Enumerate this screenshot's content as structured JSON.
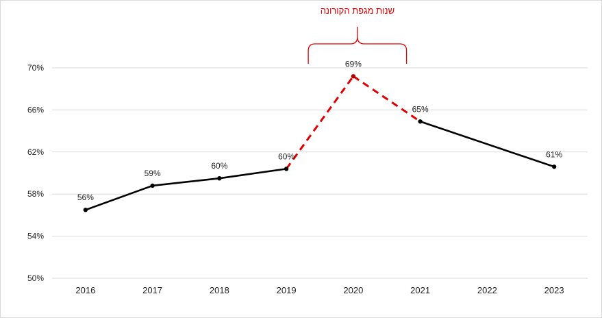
{
  "chart_data": {
    "type": "line",
    "categories": [
      "2016",
      "2017",
      "2018",
      "2019",
      "2020",
      "2021",
      "2022",
      "2023"
    ],
    "series": [
      {
        "values": [
          56.5,
          58.8,
          59.5,
          60.4,
          69.2,
          64.9,
          null,
          60.6
        ],
        "labels": [
          "56%",
          "59%",
          "60%",
          "60%",
          "69%",
          "65%",
          "",
          "61%"
        ],
        "solid_color": "#000000",
        "dashed_color": "#e00000",
        "dashed_segments": [
          [
            3,
            4
          ],
          [
            4,
            5
          ]
        ]
      }
    ],
    "yticks": [
      50,
      54,
      58,
      62,
      66,
      70
    ],
    "ytick_labels": [
      "50%",
      "54%",
      "58%",
      "62%",
      "66%",
      "70%"
    ],
    "ylim": [
      50,
      70
    ],
    "grid": true,
    "annotation": {
      "text": "שנות מגפת הקורונה",
      "from_category": "2019",
      "to_category": "2021",
      "color": "#e00000"
    }
  }
}
